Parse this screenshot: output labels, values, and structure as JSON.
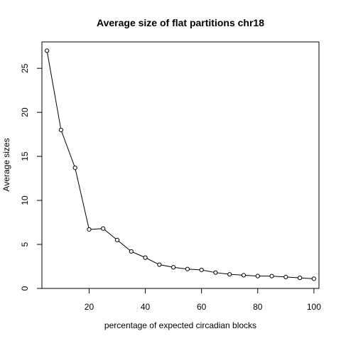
{
  "chart_data": {
    "type": "line",
    "title": "Average size of flat partitions chr18",
    "xlabel": "percentage of expected circadian blocks",
    "ylabel": "Average sizes",
    "x": [
      5,
      10,
      15,
      20,
      25,
      30,
      35,
      40,
      45,
      50,
      55,
      60,
      65,
      70,
      75,
      80,
      85,
      90,
      95,
      100
    ],
    "series": [
      {
        "values": [
          27.0,
          18.0,
          13.7,
          6.7,
          6.8,
          5.5,
          4.2,
          3.5,
          2.7,
          2.4,
          2.2,
          2.1,
          1.8,
          1.6,
          1.5,
          1.4,
          1.4,
          1.3,
          1.2,
          1.1
        ]
      }
    ],
    "xlim": [
      3.2,
      101.8
    ],
    "ylim": [
      0,
      28.0
    ],
    "xticks": [
      20,
      40,
      60,
      80,
      100
    ],
    "yticks": [
      0,
      5,
      10,
      15,
      20,
      25
    ],
    "marker": "open-circle",
    "grid": false,
    "colors": {
      "line": "#000000",
      "marker": "#000000",
      "background": "#ffffff"
    }
  }
}
